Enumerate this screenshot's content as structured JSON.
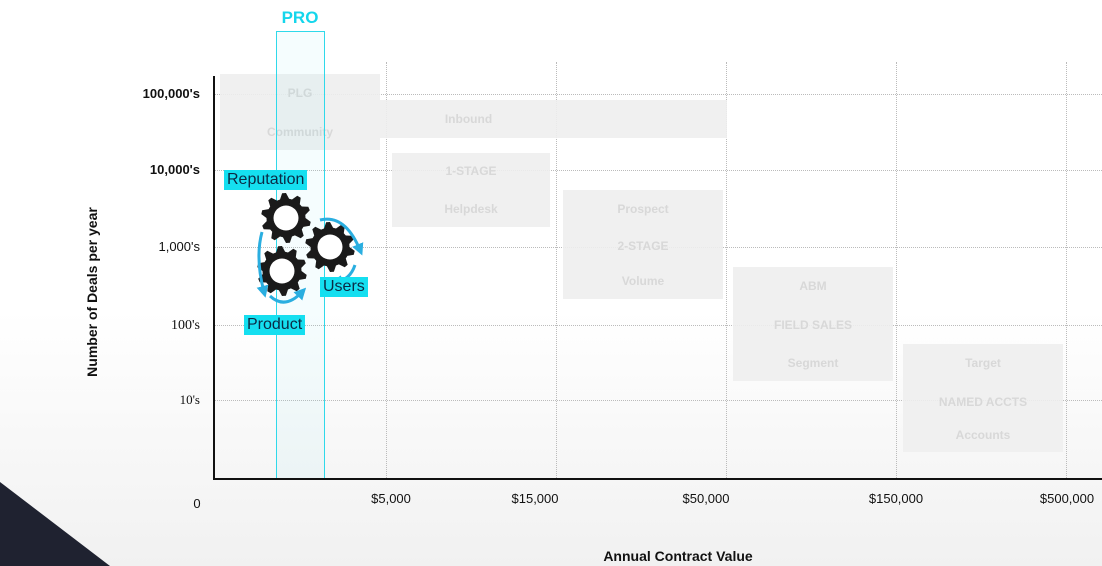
{
  "chart_data": {
    "type": "bar",
    "title": "",
    "xlabel": "Annual Contract Value",
    "ylabel": "Number of Deals per year",
    "x_ticks": [
      "0",
      "$5,000",
      "$15,000",
      "$50,000",
      "$150,000",
      "$500,000"
    ],
    "y_ticks": [
      "100,000's",
      "10,000's",
      "1,000's",
      "100's",
      "10's"
    ],
    "highlight_label": "PRO",
    "zones": [
      {
        "lines": [
          "PLG",
          "Community"
        ]
      },
      {
        "lines": [
          "Inbound"
        ]
      },
      {
        "lines": [
          "1-STAGE",
          "Helpdesk"
        ]
      },
      {
        "lines": [
          "Prospect",
          "2-STAGE",
          "Volume"
        ]
      },
      {
        "lines": [
          "ABM",
          "FIELD SALES",
          "Segment"
        ]
      },
      {
        "lines": [
          "Target",
          "NAMED ACCTS",
          "Accounts"
        ]
      }
    ],
    "flywheel_labels": [
      "Reputation",
      "Users",
      "Product"
    ],
    "colors": {
      "accent": "#15dff0",
      "axis": "#111111",
      "corner": "#1f2230"
    }
  }
}
